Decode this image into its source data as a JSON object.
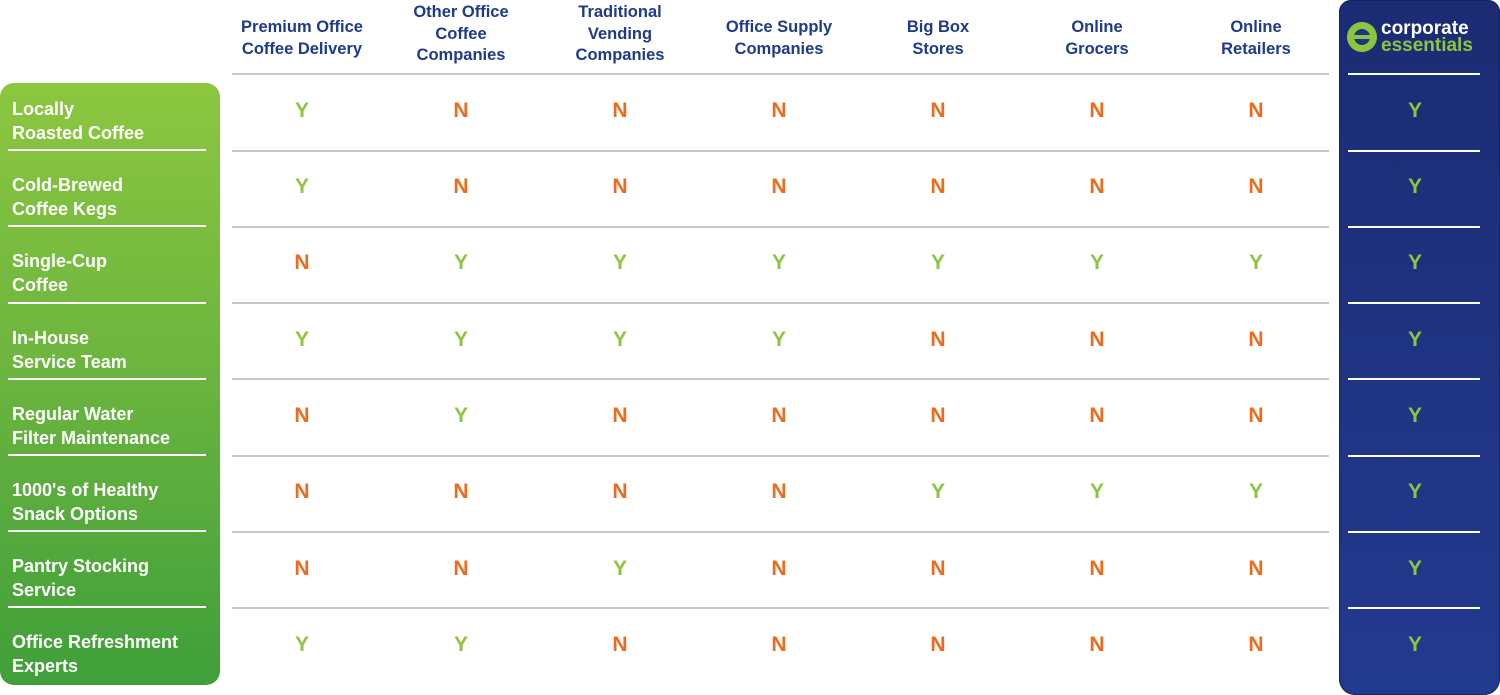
{
  "brand": {
    "name_line1": "corporate",
    "name_line2": "essentials",
    "accent": "#8cc63f",
    "column_bg": "#1e3384",
    "logo_icon": "corporate-essentials-logo-icon"
  },
  "colors": {
    "yes": "#8cc63f",
    "no": "#ef6a1a",
    "header_text": "#1f3a8a",
    "feature_panel": "#6ab43f"
  },
  "columns": [
    {
      "label": "Premium Office\nCoffee Delivery"
    },
    {
      "label": "Other Office\nCoffee\nCompanies"
    },
    {
      "label": "Traditional\nVending\nCompanies"
    },
    {
      "label": "Office Supply\nCompanies"
    },
    {
      "label": "Big Box\nStores"
    },
    {
      "label": "Online\nGrocers"
    },
    {
      "label": "Online\nRetailers"
    }
  ],
  "rows": [
    {
      "feature": "Locally\nRoasted Coffee",
      "values": [
        "Y",
        "N",
        "N",
        "N",
        "N",
        "N",
        "N",
        "Y"
      ]
    },
    {
      "feature": "Cold-Brewed\nCoffee Kegs",
      "values": [
        "Y",
        "N",
        "N",
        "N",
        "N",
        "N",
        "N",
        "Y"
      ]
    },
    {
      "feature": "Single-Cup\nCoffee",
      "values": [
        "N",
        "Y",
        "Y",
        "Y",
        "Y",
        "Y",
        "Y",
        "Y"
      ]
    },
    {
      "feature": "In-House\nService Team",
      "values": [
        "Y",
        "Y",
        "Y",
        "Y",
        "N",
        "N",
        "N",
        "Y"
      ]
    },
    {
      "feature": "Regular Water\nFilter Maintenance",
      "values": [
        "N",
        "Y",
        "N",
        "N",
        "N",
        "N",
        "N",
        "Y"
      ]
    },
    {
      "feature": "1000's of Healthy\nSnack Options",
      "values": [
        "N",
        "N",
        "N",
        "N",
        "Y",
        "Y",
        "Y",
        "Y"
      ]
    },
    {
      "feature": "Pantry Stocking\nService",
      "values": [
        "N",
        "N",
        "Y",
        "N",
        "N",
        "N",
        "N",
        "Y"
      ]
    },
    {
      "feature": "Office Refreshment\nExperts",
      "values": [
        "Y",
        "Y",
        "N",
        "N",
        "N",
        "N",
        "N",
        "Y"
      ]
    }
  ]
}
